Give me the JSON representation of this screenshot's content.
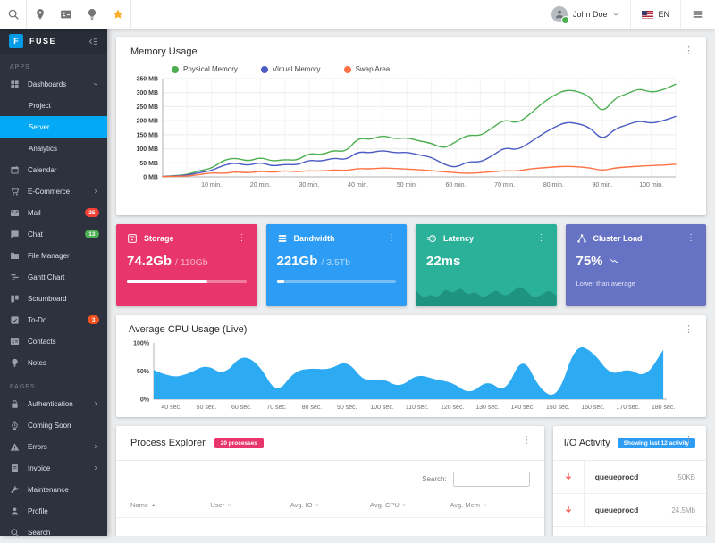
{
  "toolbar": {
    "left_icons": [
      "search",
      "pin",
      "contacts-card",
      "bulb",
      "star"
    ],
    "star_color": "#fbae29",
    "user": {
      "name": "John Doe",
      "status_color": "#4caf50"
    },
    "language": {
      "code": "EN"
    }
  },
  "sidebar": {
    "logo": {
      "letter": "F",
      "title": "FUSE"
    },
    "active_color": "#03a9f4",
    "sections": [
      {
        "label": "APPS",
        "items": [
          {
            "label": "Dashboards",
            "icon": "dashboard",
            "chevron": "down",
            "children": [
              {
                "label": "Project"
              },
              {
                "label": "Server",
                "active": true
              },
              {
                "label": "Analytics"
              }
            ]
          },
          {
            "label": "Calendar",
            "icon": "calendar"
          },
          {
            "label": "E-Commerce",
            "icon": "cart",
            "chevron": "right"
          },
          {
            "label": "Mail",
            "icon": "mail",
            "badge": {
              "text": "25",
              "color": "#f44336"
            }
          },
          {
            "label": "Chat",
            "icon": "chat",
            "badge": {
              "text": "13",
              "color": "#4caf50"
            }
          },
          {
            "label": "File Manager",
            "icon": "folder"
          },
          {
            "label": "Gantt Chart",
            "icon": "gantt"
          },
          {
            "label": "Scrumboard",
            "icon": "board"
          },
          {
            "label": "To-Do",
            "icon": "check",
            "badge": {
              "text": "3",
              "color": "#f4511e"
            }
          },
          {
            "label": "Contacts",
            "icon": "contacts"
          },
          {
            "label": "Notes",
            "icon": "notes"
          }
        ]
      },
      {
        "label": "PAGES",
        "items": [
          {
            "label": "Authentication",
            "icon": "lock",
            "chevron": "right"
          },
          {
            "label": "Coming Soon",
            "icon": "watch"
          },
          {
            "label": "Errors",
            "icon": "warning",
            "chevron": "right"
          },
          {
            "label": "Invoice",
            "icon": "receipt",
            "chevron": "right"
          },
          {
            "label": "Maintenance",
            "icon": "wrench"
          },
          {
            "label": "Profile",
            "icon": "person"
          },
          {
            "label": "Search",
            "icon": "search"
          }
        ]
      }
    ]
  },
  "memory_card": {
    "title": "Memory Usage"
  },
  "stat_cards": [
    {
      "title": "Storage",
      "icon": "storage",
      "value": "74.2Gb",
      "total": "/ 110Gb",
      "progress": 67.5,
      "color": "#e8366d"
    },
    {
      "title": "Bandwidth",
      "icon": "bandwidth",
      "value": "221Gb",
      "total": "/ 3.5Tb",
      "progress": 6.3,
      "color": "#2d9cf4"
    },
    {
      "title": "Latency",
      "icon": "latency",
      "value": "22ms",
      "color": "#2bb19a"
    },
    {
      "title": "Cluster Load",
      "icon": "cluster",
      "value": "75%",
      "caption": "Lower than average",
      "color": "#6672c4"
    }
  ],
  "cpu_card": {
    "title": "Average CPU Usage (Live)"
  },
  "process_card": {
    "title": "Process Explorer",
    "badge": "20 processes",
    "badge_color": "#e8366d",
    "search_label": "Search:",
    "columns": [
      "Name",
      "User",
      "Avg. IO",
      "Avg. CPU",
      "Avg. Mem"
    ]
  },
  "io_card": {
    "title": "I/O Activity",
    "badge": "Showing last 12 activity",
    "badge_color": "#2d9cf4",
    "rows": [
      {
        "name": "queueprocd",
        "size": "50KB"
      },
      {
        "name": "queueprocd",
        "size": "24.5Mb"
      }
    ]
  },
  "chart_data": [
    {
      "id": "memory",
      "type": "line",
      "title": "Memory Usage",
      "xlabel": "minutes",
      "ylabel": "MB",
      "xlim": [
        0,
        105
      ],
      "ylim": [
        0,
        350
      ],
      "grid": true,
      "legend_position": "top",
      "x": [
        0,
        2.5,
        5,
        7.5,
        10,
        12.5,
        15,
        17.5,
        20,
        22.5,
        25,
        27.5,
        30,
        32.5,
        35,
        37.5,
        40,
        42.5,
        45,
        47.5,
        50,
        52.5,
        55,
        57.5,
        60,
        62.5,
        65,
        67.5,
        70,
        72.5,
        75,
        77.5,
        80,
        82.5,
        85,
        87.5,
        90,
        92.5,
        95,
        97.5,
        100,
        102.5,
        105
      ],
      "series": [
        {
          "name": "Physical Memory",
          "color": "#4caf50",
          "values": [
            2,
            4,
            8,
            22,
            30,
            60,
            68,
            55,
            70,
            55,
            62,
            58,
            85,
            78,
            95,
            88,
            140,
            132,
            148,
            135,
            140,
            128,
            120,
            100,
            125,
            150,
            145,
            175,
            205,
            190,
            220,
            260,
            290,
            310,
            305,
            285,
            225,
            280,
            295,
            315,
            300,
            310,
            330
          ]
        },
        {
          "name": "Virtual Memory",
          "color": "#4a5bc4",
          "values": [
            1,
            3,
            6,
            15,
            22,
            42,
            50,
            40,
            52,
            38,
            45,
            42,
            60,
            55,
            68,
            60,
            90,
            85,
            95,
            85,
            88,
            78,
            70,
            45,
            32,
            55,
            52,
            75,
            105,
            95,
            120,
            150,
            175,
            195,
            190,
            175,
            130,
            170,
            185,
            200,
            190,
            200,
            215
          ]
        },
        {
          "name": "Swap Area",
          "color": "#ff7043",
          "values": [
            1,
            2,
            3,
            8,
            15,
            12,
            18,
            14,
            20,
            16,
            22,
            18,
            22,
            20,
            25,
            22,
            30,
            28,
            32,
            30,
            28,
            25,
            22,
            18,
            15,
            12,
            15,
            18,
            22,
            20,
            28,
            32,
            35,
            38,
            36,
            32,
            22,
            32,
            35,
            38,
            40,
            42,
            45
          ]
        }
      ],
      "yticks": [
        {
          "v": 0,
          "label": "0 MB"
        },
        {
          "v": 50,
          "label": "50 MB"
        },
        {
          "v": 100,
          "label": "100 MB"
        },
        {
          "v": 150,
          "label": "150 MB"
        },
        {
          "v": 200,
          "label": "200 MB"
        },
        {
          "v": 250,
          "label": "250 MB"
        },
        {
          "v": 300,
          "label": "300 MB"
        },
        {
          "v": 350,
          "label": "350 MB"
        }
      ],
      "xticks": [
        {
          "v": 10,
          "label": "10 min."
        },
        {
          "v": 20,
          "label": "20 min."
        },
        {
          "v": 30,
          "label": "30 min."
        },
        {
          "v": 40,
          "label": "40 min."
        },
        {
          "v": 50,
          "label": "50 min."
        },
        {
          "v": 60,
          "label": "60 min."
        },
        {
          "v": 70,
          "label": "70 min."
        },
        {
          "v": 80,
          "label": "80 min."
        },
        {
          "v": 90,
          "label": "90 min."
        },
        {
          "v": 100,
          "label": "100 min."
        }
      ]
    },
    {
      "id": "cpu",
      "type": "area",
      "title": "Average CPU Usage (Live)",
      "xlabel": "seconds",
      "ylabel": "%",
      "xlim": [
        35,
        181
      ],
      "ylim": [
        0,
        100
      ],
      "grid": false,
      "color": "#2caaf2",
      "x": [
        35,
        40,
        45,
        50,
        55,
        60,
        65,
        70,
        75,
        80,
        85,
        90,
        95,
        100,
        105,
        110,
        115,
        120,
        125,
        130,
        135,
        140,
        145,
        150,
        155,
        160,
        165,
        170,
        175,
        180
      ],
      "values": [
        52,
        38,
        45,
        62,
        42,
        80,
        62,
        8,
        50,
        55,
        52,
        70,
        30,
        38,
        20,
        45,
        35,
        30,
        8,
        35,
        10,
        80,
        15,
        2,
        98,
        85,
        42,
        55,
        38,
        88
      ],
      "yticks": [
        {
          "v": 0,
          "label": "0%"
        },
        {
          "v": 50,
          "label": "50%"
        },
        {
          "v": 100,
          "label": "100%"
        }
      ],
      "xticks": [
        {
          "v": 40,
          "label": "40 sec."
        },
        {
          "v": 50,
          "label": "50 sec."
        },
        {
          "v": 60,
          "label": "60 sec."
        },
        {
          "v": 70,
          "label": "70 sec."
        },
        {
          "v": 80,
          "label": "80 sec."
        },
        {
          "v": 90,
          "label": "90 sec."
        },
        {
          "v": 100,
          "label": "100 sec."
        },
        {
          "v": 110,
          "label": "110 sec."
        },
        {
          "v": 120,
          "label": "120 sec."
        },
        {
          "v": 130,
          "label": "130 sec."
        },
        {
          "v": 140,
          "label": "140 sec."
        },
        {
          "v": 150,
          "label": "150 sec."
        },
        {
          "v": 160,
          "label": "160 sec."
        },
        {
          "v": 170,
          "label": "170 sec."
        },
        {
          "v": 180,
          "label": "180 sec."
        }
      ]
    },
    {
      "id": "latency-sparkline",
      "type": "area",
      "title": "Latency waveform",
      "ylim": [
        0,
        100
      ],
      "color": "#1e9480",
      "values": [
        60,
        25,
        45,
        30,
        65,
        45,
        70,
        40,
        55,
        30,
        45,
        60,
        35,
        50,
        75,
        55,
        28,
        42,
        60,
        38
      ]
    }
  ]
}
